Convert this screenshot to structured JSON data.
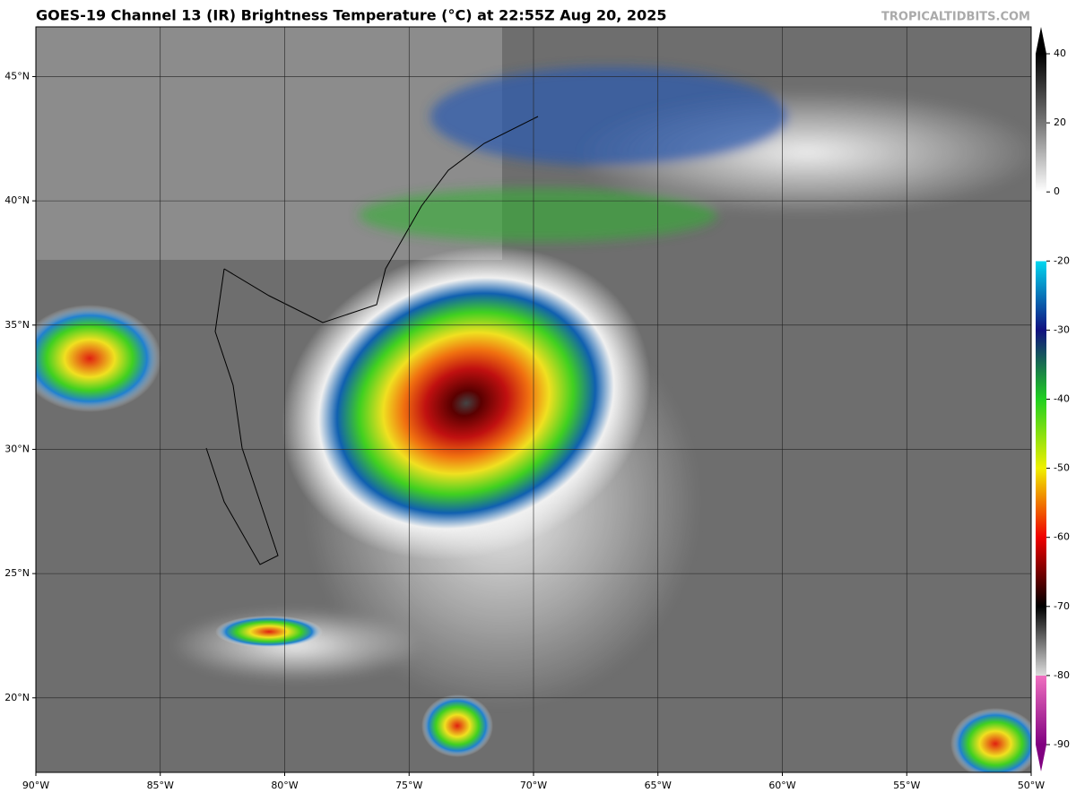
{
  "title": "GOES-19 Channel 13 (IR) Brightness Temperature (°C) at 22:55Z Aug 20, 2025",
  "credit": "TROPICALTIDBITS.COM",
  "map": {
    "xlim": [
      -90,
      -50
    ],
    "ylim": [
      17,
      47
    ],
    "xticks": [
      {
        "value": -90,
        "label": "90°W"
      },
      {
        "value": -85,
        "label": "85°W"
      },
      {
        "value": -80,
        "label": "80°W"
      },
      {
        "value": -75,
        "label": "75°W"
      },
      {
        "value": -70,
        "label": "70°W"
      },
      {
        "value": -65,
        "label": "65°W"
      },
      {
        "value": -60,
        "label": "60°W"
      },
      {
        "value": -55,
        "label": "55°W"
      },
      {
        "value": -50,
        "label": "50°W"
      }
    ],
    "yticks": [
      {
        "value": 20,
        "label": "20°N"
      },
      {
        "value": 25,
        "label": "25°N"
      },
      {
        "value": 30,
        "label": "30°N"
      },
      {
        "value": 35,
        "label": "35°N"
      },
      {
        "value": 40,
        "label": "40°N"
      },
      {
        "value": 45,
        "label": "45°N"
      }
    ]
  },
  "colorbar": {
    "ticks": [
      40,
      20,
      0,
      -20,
      -30,
      -40,
      -50,
      -60,
      -70,
      -80,
      -90
    ]
  }
}
